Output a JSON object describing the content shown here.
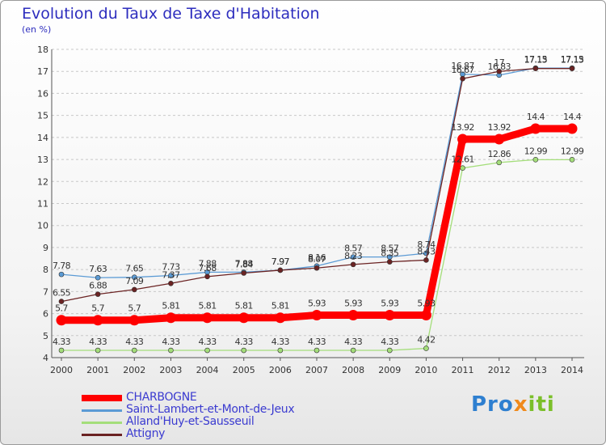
{
  "header": {
    "title": "Evolution du Taux de Taxe d'Habitation",
    "unit": "(en %)"
  },
  "logo": {
    "part1": "Pro",
    "part2": "x",
    "part3": "iti"
  },
  "chart_data": {
    "type": "line",
    "x": [
      2000,
      2001,
      2002,
      2003,
      2004,
      2005,
      2006,
      2007,
      2008,
      2009,
      2010,
      2011,
      2012,
      2013,
      2014
    ],
    "ylim": [
      4,
      18
    ],
    "yticks": [
      4,
      5,
      6,
      7,
      8,
      9,
      10,
      11,
      12,
      13,
      14,
      15,
      16,
      17,
      18
    ],
    "grid": "horizontal dashed",
    "legend_position": "bottom-left",
    "series": [
      {
        "name": "CHARBOGNE",
        "color": "#ff0000",
        "values": [
          5.7,
          5.7,
          5.7,
          5.81,
          5.81,
          5.81,
          5.81,
          5.93,
          5.93,
          5.93,
          5.93,
          13.92,
          13.92,
          14.4,
          14.4
        ],
        "labels": [
          "5.7",
          "5.7",
          "5.7",
          "5.81",
          "5.81",
          "5.81",
          "5.81",
          "5.93",
          "5.93",
          "5.93",
          "5.93",
          "13.92",
          "13.92",
          "14.4",
          "14.4"
        ]
      },
      {
        "name": "Saint-Lambert-et-Mont-de-Jeux",
        "color": "#5b9bd5",
        "values": [
          7.78,
          7.63,
          7.65,
          7.73,
          7.88,
          7.88,
          7.97,
          8.16,
          8.57,
          8.57,
          8.74,
          16.87,
          16.83,
          17.15,
          17.15
        ],
        "labels": [
          "7.78",
          "7.63",
          "7.65",
          "7.73",
          "7.88",
          "7.88",
          "7.97",
          "8.16",
          "8.57",
          "8.57",
          "8.74",
          "16.87",
          "16.83",
          "17.15",
          "17.15"
        ]
      },
      {
        "name": "Alland'Huy-et-Sausseuil",
        "color": "#a4de7a",
        "values": [
          4.33,
          4.33,
          4.33,
          4.33,
          4.33,
          4.33,
          4.33,
          4.33,
          4.33,
          4.33,
          4.42,
          12.61,
          12.86,
          12.99,
          12.99
        ],
        "labels": [
          "4.33",
          "4.33",
          "4.33",
          "4.33",
          "4.33",
          "4.33",
          "4.33",
          "4.33",
          "4.33",
          "4.33",
          "4.42",
          "12.61",
          "12.86",
          "12.99",
          "12.99"
        ]
      },
      {
        "name": "Attigny",
        "color": "#6b2323",
        "values": [
          6.55,
          6.88,
          7.09,
          7.37,
          7.68,
          7.84,
          7.97,
          8.07,
          8.23,
          8.35,
          8.43,
          16.67,
          17.0,
          17.13,
          17.13
        ],
        "labels": [
          "6.55",
          "6.88",
          "7.09",
          "7.37",
          "7.68",
          "7.84",
          "7.97",
          "8.07",
          "8.23",
          "8.35",
          "8.43",
          "16.67",
          "17",
          "17.13",
          "17.13"
        ]
      }
    ]
  }
}
